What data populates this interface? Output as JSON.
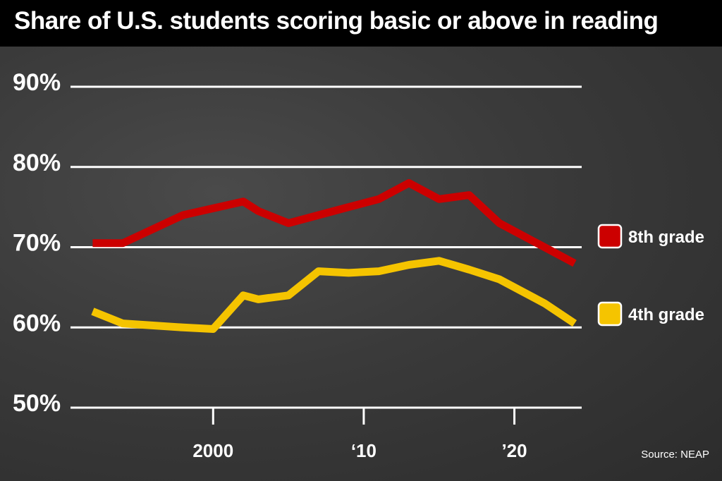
{
  "title": "Share of U.S. students scoring basic or above in reading",
  "source": "Source: NEAP",
  "colors": {
    "background": "#3a3a3a",
    "title_bar": "#000000",
    "grid": "#ffffff",
    "series_8th": "#cc0000",
    "series_4th": "#f5c400"
  },
  "chart_data": {
    "type": "line",
    "title": "Share of U.S. students scoring basic or above in reading",
    "xlabel": "",
    "ylabel": "",
    "xlim": [
      1991,
      2024
    ],
    "ylim": [
      50,
      90
    ],
    "y_ticks": [
      {
        "value": 90,
        "label": "90%"
      },
      {
        "value": 80,
        "label": "80%"
      },
      {
        "value": 70,
        "label": "70%"
      },
      {
        "value": 60,
        "label": "60%"
      },
      {
        "value": 50,
        "label": "50%"
      }
    ],
    "x_ticks": [
      {
        "value": 2000,
        "label": "2000"
      },
      {
        "value": 2010,
        "label": "‘10"
      },
      {
        "value": 2020,
        "label": "’20"
      }
    ],
    "grid": true,
    "legend": "right",
    "series": [
      {
        "name": "8th grade",
        "color": "#cc0000",
        "points": [
          [
            1992,
            70.5
          ],
          [
            1994,
            70.5
          ],
          [
            1998,
            74
          ],
          [
            2002,
            75.7
          ],
          [
            2003,
            74.5
          ],
          [
            2005,
            73
          ],
          [
            2007,
            74
          ],
          [
            2009,
            75
          ],
          [
            2011,
            76
          ],
          [
            2013,
            78
          ],
          [
            2015,
            76
          ],
          [
            2017,
            76.5
          ],
          [
            2019,
            73
          ],
          [
            2022,
            70
          ],
          [
            2024,
            68
          ]
        ]
      },
      {
        "name": "4th grade",
        "color": "#f5c400",
        "points": [
          [
            1992,
            62
          ],
          [
            1994,
            60.5
          ],
          [
            1998,
            60
          ],
          [
            2000,
            59.8
          ],
          [
            2002,
            64
          ],
          [
            2003,
            63.5
          ],
          [
            2005,
            64
          ],
          [
            2007,
            67
          ],
          [
            2009,
            66.8
          ],
          [
            2011,
            67
          ],
          [
            2013,
            67.8
          ],
          [
            2015,
            68.3
          ],
          [
            2017,
            67.2
          ],
          [
            2019,
            66
          ],
          [
            2022,
            63
          ],
          [
            2024,
            60.5
          ]
        ]
      }
    ]
  }
}
